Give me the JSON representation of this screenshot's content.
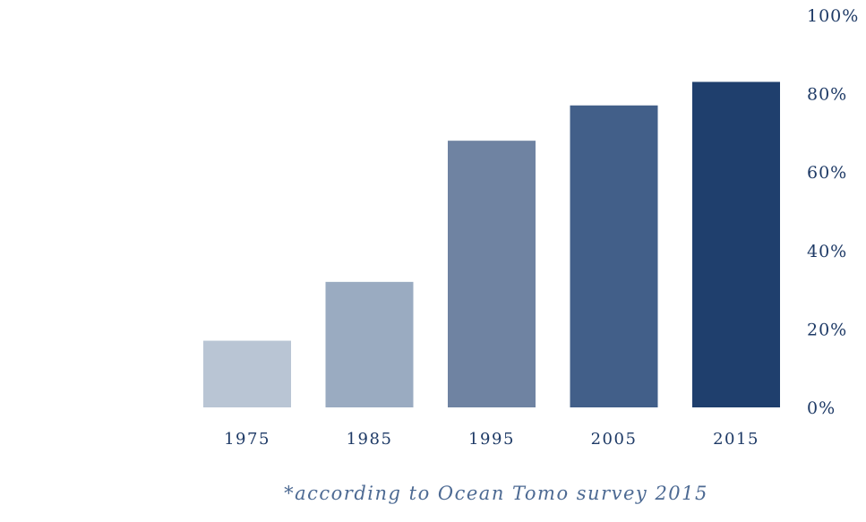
{
  "chart_data": {
    "type": "bar",
    "categories": [
      "1975",
      "1985",
      "1995",
      "2005",
      "2015"
    ],
    "values": [
      17,
      32,
      68,
      77,
      83
    ],
    "colors": [
      "#b9c5d4",
      "#9aabc1",
      "#6f83a2",
      "#425f89",
      "#1f3f6d"
    ],
    "ylim": [
      0,
      100
    ],
    "y_ticks": [
      0,
      20,
      40,
      60,
      80,
      100
    ],
    "y_tick_labels": [
      "0%",
      "20%",
      "40%",
      "60%",
      "80%",
      "100%"
    ],
    "y_axis_position": "right",
    "grid": false,
    "title": "",
    "xlabel": "",
    "ylabel": ""
  },
  "footnote": "*according to Ocean Tomo survey 2015",
  "colors": {
    "text": "#1e3a66",
    "footnote": "#4d6a93"
  }
}
